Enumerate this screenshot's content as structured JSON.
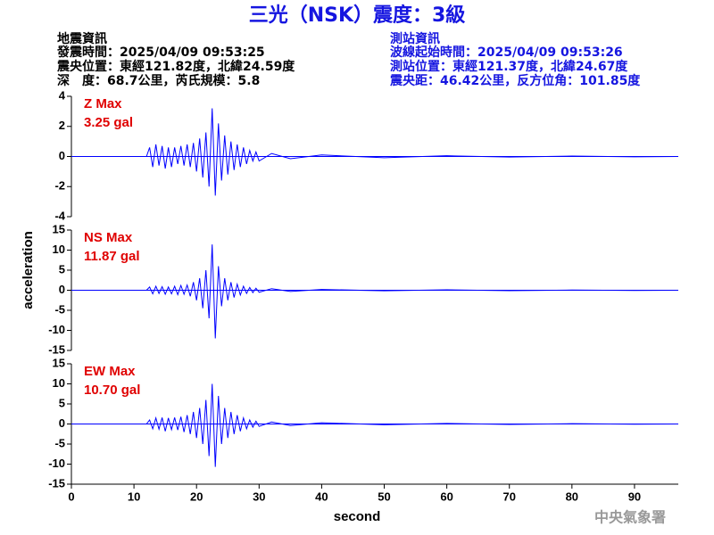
{
  "header": {
    "title": "三光（NSK）震度：3級",
    "left": [
      "地震資訊",
      "發震時間：2025/04/09 09:53:25",
      "震央位置：東經121.82度，北緯24.59度",
      "深　度：68.7公里，芮氏規模：5.8"
    ],
    "right": [
      "測站資訊",
      "波線起始時間：2025/04/09 09:53:26",
      "測站位置：東經121.37度，北緯24.67度",
      "震央距：46.42公里，反方位角：101.85度"
    ],
    "agency": "中央氣象署"
  },
  "chart_data": [
    {
      "type": "line",
      "annotations": [
        "Z Max",
        "3.25 gal"
      ],
      "color": "#0000ff",
      "x": [
        0,
        12,
        12.5,
        13,
        13.5,
        14,
        14.5,
        15,
        15.5,
        16,
        16.5,
        17,
        17.5,
        18,
        18.5,
        19,
        19.5,
        20,
        20.5,
        21,
        21.5,
        22,
        22.5,
        23,
        23.5,
        24,
        24.5,
        25,
        25.5,
        26,
        26.5,
        27,
        27.5,
        28,
        28.5,
        29,
        29.5,
        30,
        32,
        35,
        40,
        50,
        60,
        70,
        80,
        90,
        97
      ],
      "values": [
        0,
        0,
        0.6,
        -0.7,
        0.8,
        -0.6,
        0.7,
        -0.8,
        0.6,
        -0.7,
        0.6,
        -0.5,
        0.7,
        -0.6,
        0.8,
        -0.7,
        0.9,
        -1.0,
        1.2,
        -1.4,
        1.6,
        -2.0,
        3.2,
        -2.6,
        2.2,
        -1.6,
        1.4,
        -1.2,
        1.0,
        -0.9,
        0.8,
        -0.7,
        0.6,
        -0.5,
        0.4,
        -0.3,
        0.3,
        -0.3,
        0.2,
        -0.15,
        0.1,
        -0.08,
        0.05,
        -0.04,
        0.03,
        -0.02,
        0
      ],
      "xlim": [
        0,
        97
      ],
      "ylim": [
        -4,
        4
      ],
      "yticks": [
        -4,
        -2,
        0,
        2,
        4
      ]
    },
    {
      "type": "line",
      "annotations": [
        "NS Max",
        "11.87 gal"
      ],
      "color": "#0000ff",
      "ylabel": "acceleration",
      "x": [
        0,
        12,
        12.5,
        13,
        13.5,
        14,
        14.5,
        15,
        15.5,
        16,
        16.5,
        17,
        17.5,
        18,
        18.5,
        19,
        19.5,
        20,
        20.5,
        21,
        21.5,
        22,
        22.5,
        23,
        23.5,
        24,
        24.5,
        25,
        25.5,
        26,
        26.5,
        27,
        27.5,
        28,
        28.5,
        29,
        29.5,
        30,
        32,
        35,
        40,
        50,
        60,
        70,
        80,
        90,
        97
      ],
      "values": [
        0,
        0,
        0.8,
        -0.9,
        1.0,
        -0.8,
        0.9,
        -1.0,
        0.8,
        -0.9,
        1.0,
        -1.1,
        1.2,
        -1.0,
        1.3,
        -1.5,
        2.0,
        -2.5,
        3.0,
        -4.5,
        5.0,
        -7.0,
        11.4,
        -12.0,
        6.0,
        -4.0,
        3.0,
        -2.5,
        2.0,
        -1.8,
        1.5,
        -1.2,
        1.0,
        -0.8,
        0.7,
        -0.6,
        0.5,
        -0.5,
        0.4,
        -0.3,
        0.2,
        -0.15,
        0.1,
        -0.1,
        0.05,
        -0.05,
        0
      ],
      "xlim": [
        0,
        97
      ],
      "ylim": [
        -15,
        15
      ],
      "yticks": [
        -15,
        -10,
        -5,
        0,
        5,
        10,
        15
      ]
    },
    {
      "type": "line",
      "annotations": [
        "EW Max",
        "10.70 gal"
      ],
      "color": "#0000ff",
      "xlabel": "second",
      "x": [
        0,
        12,
        12.5,
        13,
        13.5,
        14,
        14.5,
        15,
        15.5,
        16,
        16.5,
        17,
        17.5,
        18,
        18.5,
        19,
        19.5,
        20,
        20.5,
        21,
        21.5,
        22,
        22.5,
        23,
        23.5,
        24,
        24.5,
        25,
        25.5,
        26,
        26.5,
        27,
        27.5,
        28,
        28.5,
        29,
        29.5,
        30,
        32,
        35,
        40,
        50,
        60,
        70,
        80,
        90,
        97
      ],
      "values": [
        0,
        0,
        1.0,
        -1.2,
        1.5,
        -1.3,
        1.6,
        -1.8,
        1.5,
        -1.4,
        1.6,
        -1.5,
        1.8,
        -2.0,
        2.2,
        -2.5,
        3.0,
        -3.5,
        4.0,
        -5.0,
        6.0,
        -8.0,
        10.0,
        -10.7,
        7.0,
        -5.0,
        4.0,
        -3.5,
        3.0,
        -2.5,
        2.2,
        -1.8,
        1.5,
        -1.2,
        1.0,
        -0.8,
        0.7,
        -0.6,
        0.5,
        -0.4,
        0.3,
        -0.2,
        0.15,
        -0.1,
        0.08,
        -0.05,
        0
      ],
      "xlim": [
        0,
        97
      ],
      "ylim": [
        -15,
        15
      ],
      "yticks": [
        -15,
        -10,
        -5,
        0,
        5,
        10,
        15
      ],
      "xticks": [
        0,
        10,
        20,
        30,
        40,
        50,
        60,
        70,
        80,
        90
      ]
    }
  ]
}
